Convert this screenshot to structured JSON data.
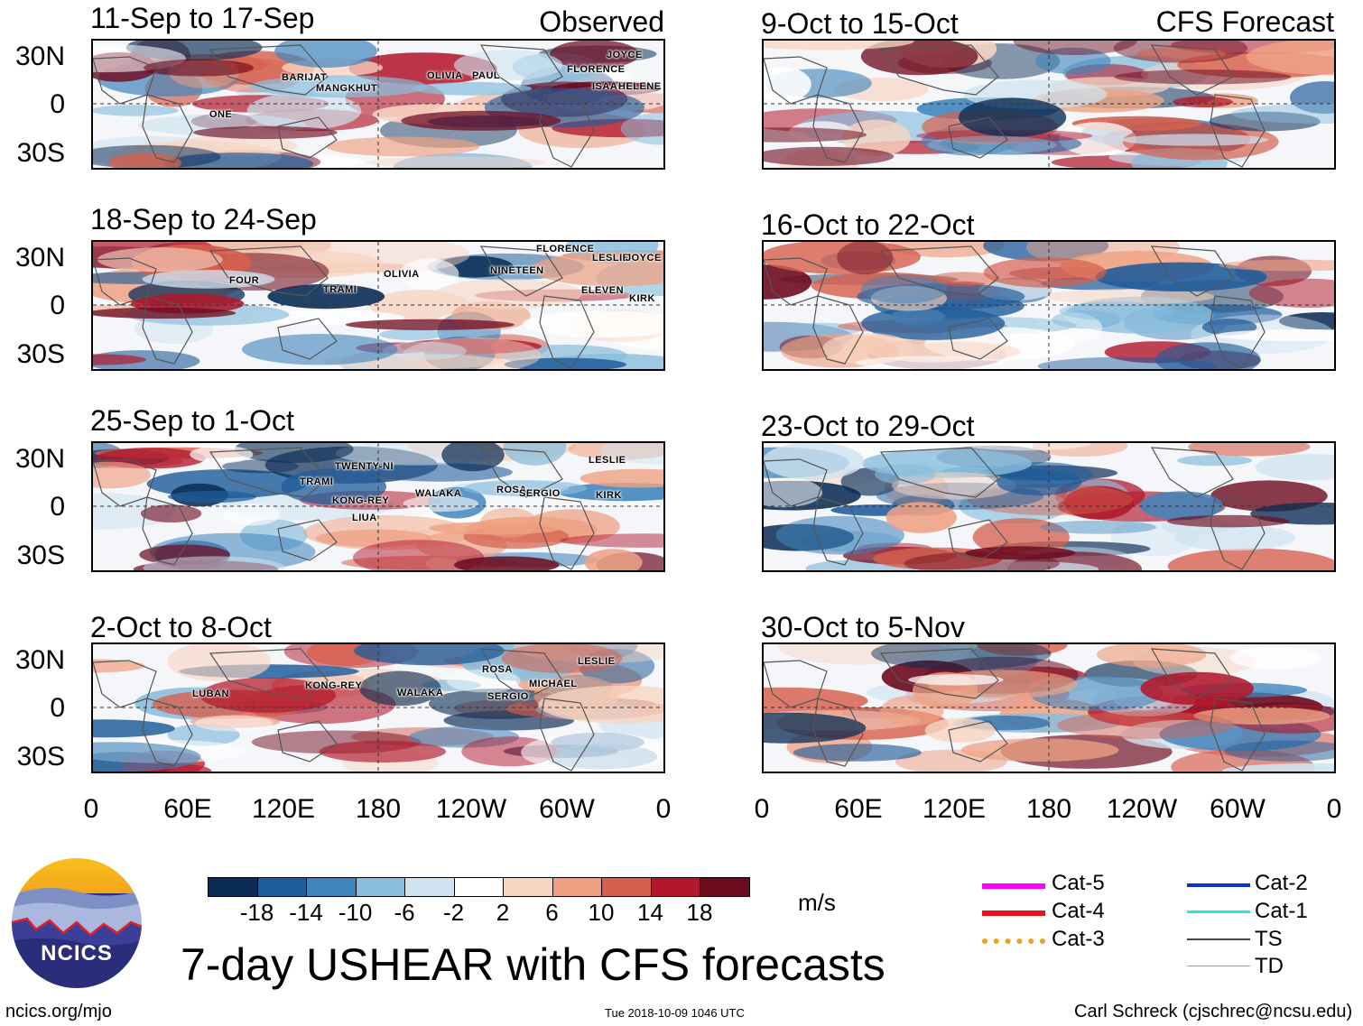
{
  "observed_label": "Observed",
  "forecast_label": "CFS Forecast",
  "lat_labels": [
    "30N",
    "0",
    "30S"
  ],
  "lon_labels": [
    "0",
    "60E",
    "120E",
    "180",
    "120W",
    "60W",
    "0"
  ],
  "panels_left": [
    {
      "title": "11-Sep to 17-Sep",
      "storms": [
        "JOYCE",
        "BARIJAT",
        "MANGKHUT",
        "OLIVIA",
        "PAUL",
        "FLORENCE",
        "ISAAC",
        "HELENE",
        "ONE"
      ]
    },
    {
      "title": "18-Sep to 24-Sep",
      "storms": [
        "FLORENCE",
        "LESLIE",
        "JOYCE",
        "NINETEEN",
        "FOUR",
        "TRAMI",
        "OLIVIA",
        "ELEVEN",
        "KIRK"
      ]
    },
    {
      "title": "25-Sep to 1-Oct",
      "storms": [
        "LESLIE",
        "TWENTY-NI",
        "TRAMI",
        "KONG-REY",
        "WALAKA",
        "ROSA",
        "SERGIO",
        "KIRK",
        "LIUA"
      ]
    },
    {
      "title": "2-Oct to 8-Oct",
      "storms": [
        "LESLIE",
        "ROSA",
        "MICHAEL",
        "KONG-REY",
        "WALAKA",
        "SERGIO",
        "LUBAN"
      ]
    }
  ],
  "panels_right": [
    {
      "title": "9-Oct to 15-Oct"
    },
    {
      "title": "16-Oct to 22-Oct"
    },
    {
      "title": "23-Oct to 29-Oct"
    },
    {
      "title": "30-Oct to 5-Nov"
    }
  ],
  "colorbar": {
    "ticks": [
      "-18",
      "-14",
      "-10",
      "-6",
      "-2",
      "2",
      "6",
      "10",
      "14",
      "18"
    ],
    "colors": [
      "#0b2d55",
      "#1f5c9a",
      "#3f84bc",
      "#89bedc",
      "#cfe3f0",
      "#ffffff",
      "#f8d5c2",
      "#eea283",
      "#d6604d",
      "#b2182b",
      "#6d0a1e"
    ],
    "units": "m/s"
  },
  "legend": [
    {
      "label": "Cat-5",
      "color": "#ff00ff"
    },
    {
      "label": "Cat-4",
      "color": "#e8141c"
    },
    {
      "label": "Cat-3",
      "color": "#f0a020"
    },
    {
      "label": "Cat-2",
      "color": "#1030d0"
    },
    {
      "label": "Cat-1",
      "color": "#20e8e8"
    },
    {
      "label": "TS",
      "color": "#444444"
    },
    {
      "label": "TD",
      "color": "#999999"
    }
  ],
  "main_title": "7-day USHEAR with CFS forecasts",
  "logo_text": "NCICS",
  "footer_left": "ncics.org/mjo",
  "footer_center": "Tue 2018-10-09 1046 UTC",
  "footer_right": "Carl Schreck (cjschrec@ncsu.edu)"
}
